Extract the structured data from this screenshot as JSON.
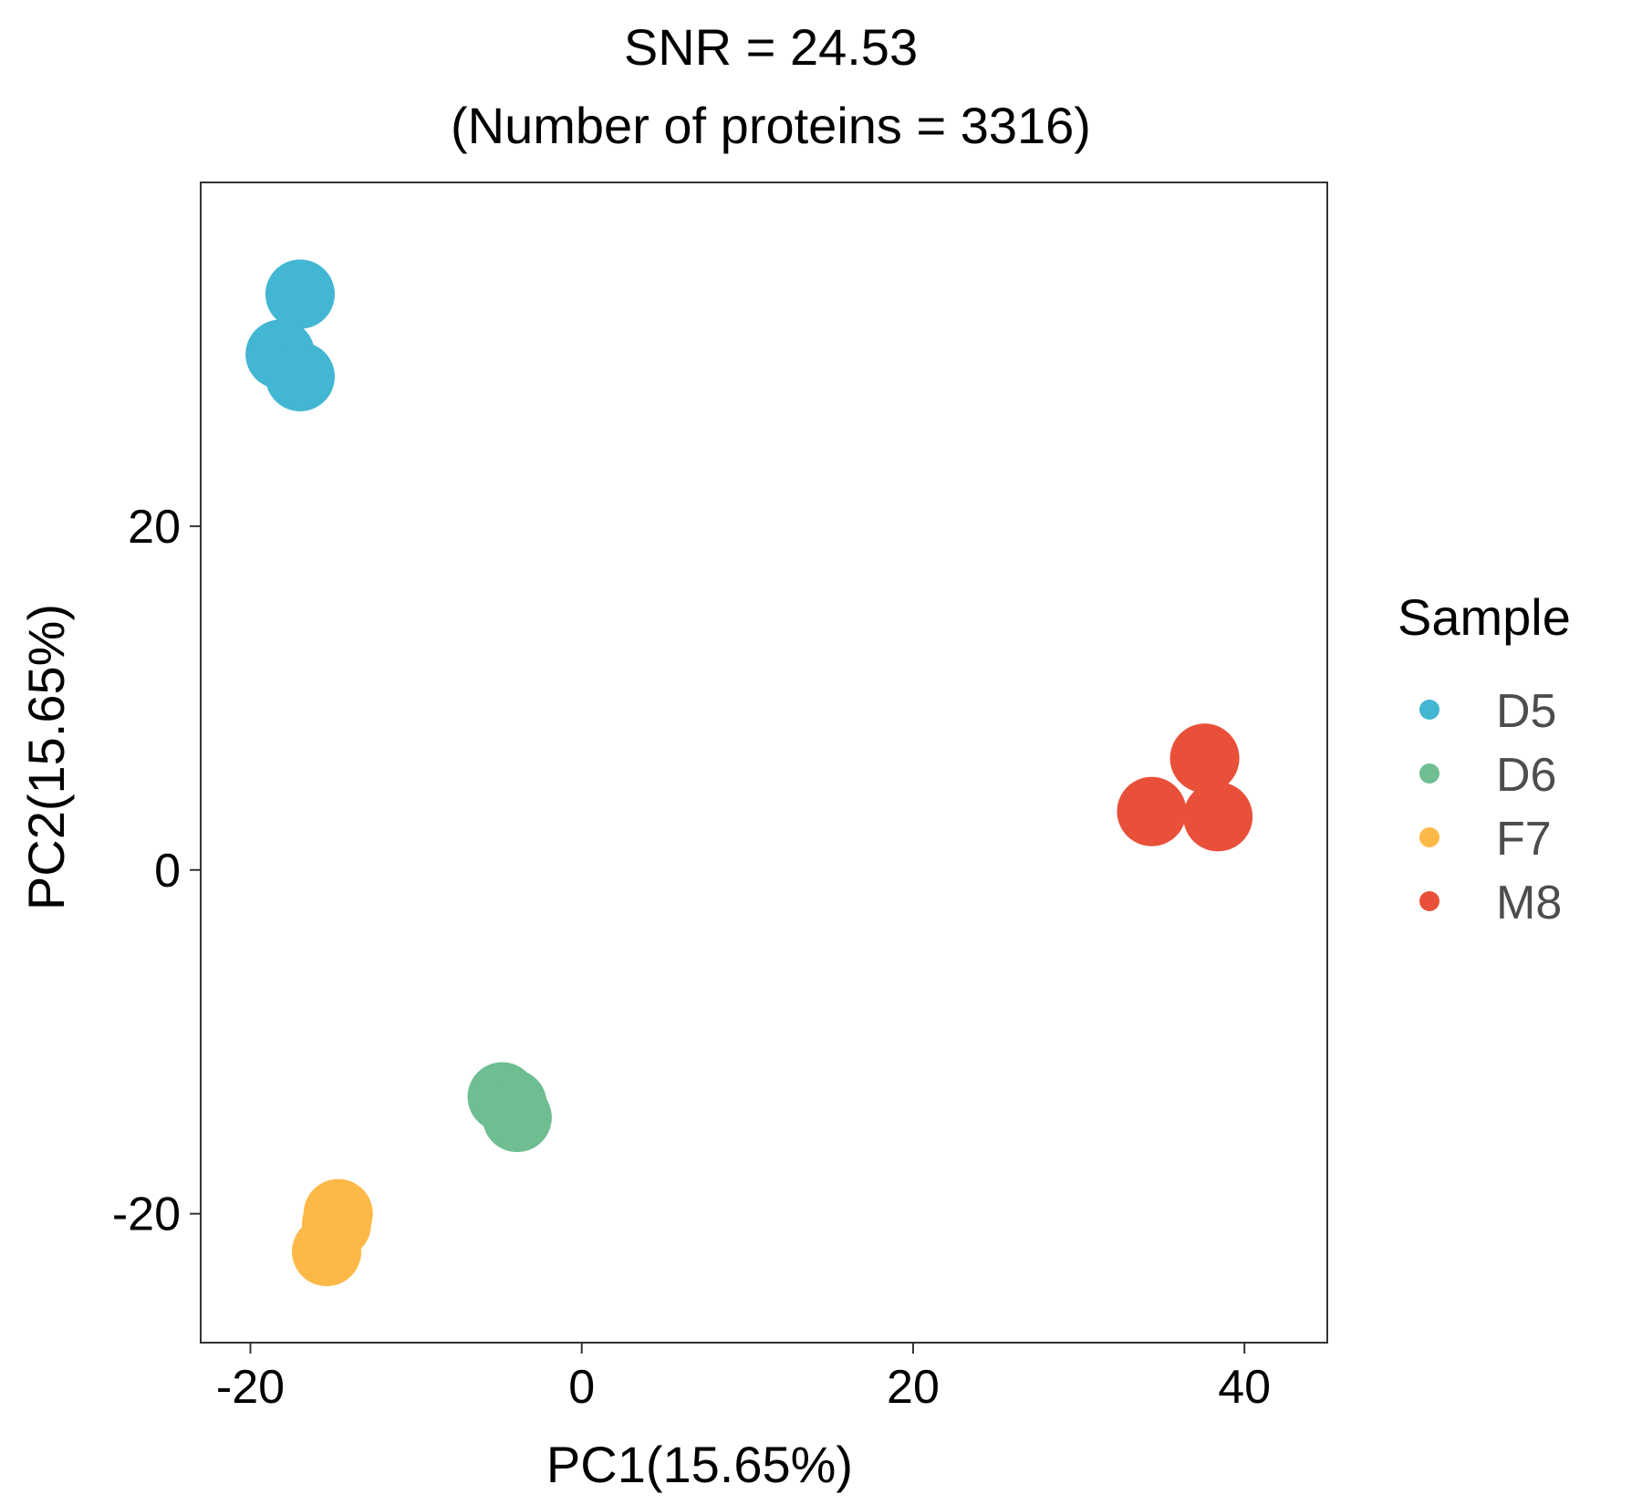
{
  "chart_data": {
    "type": "scatter",
    "title": "SNR = 24.53",
    "subtitle": "(Number of proteins = 3316)",
    "xlabel": "PC1(15.65%)",
    "ylabel": "PC2(15.65%)",
    "xlim": [
      -23,
      45
    ],
    "ylim": [
      -27.5,
      40
    ],
    "xticks": [
      -20,
      0,
      20,
      40
    ],
    "yticks": [
      -20,
      0,
      20
    ],
    "grid": false,
    "legend": {
      "title": "Sample",
      "position": "right"
    },
    "series": [
      {
        "name": "D5",
        "color": "#42B6D2",
        "points": [
          [
            -17.0,
            33.5
          ],
          [
            -18.2,
            30.0
          ],
          [
            -17.0,
            28.7
          ]
        ]
      },
      {
        "name": "D6",
        "color": "#6EBE91",
        "points": [
          [
            -4.8,
            -13.2
          ],
          [
            -4.2,
            -13.6
          ],
          [
            -3.9,
            -14.4
          ]
        ]
      },
      {
        "name": "F7",
        "color": "#FCB948",
        "points": [
          [
            -14.7,
            -20.0
          ],
          [
            -14.8,
            -20.6
          ],
          [
            -15.4,
            -22.2
          ]
        ]
      },
      {
        "name": "M8",
        "color": "#E9503A",
        "points": [
          [
            37.6,
            6.5
          ],
          [
            34.4,
            3.4
          ],
          [
            38.4,
            3.1
          ]
        ]
      }
    ]
  }
}
